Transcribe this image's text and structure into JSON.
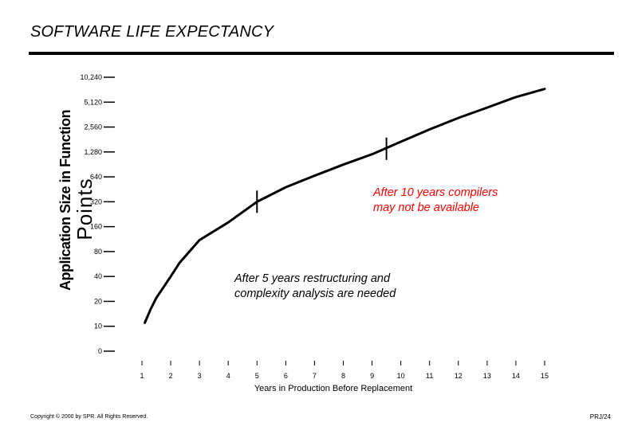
{
  "title": "SOFTWARE LIFE EXPECTANCY",
  "footer": {
    "copyright": "Copyright © 2000 by SPR. All Rights Reserved.",
    "page": "PRJ/24"
  },
  "colors": {
    "note_highlight": "#ff0000",
    "line": "#000000"
  },
  "chart_data": {
    "type": "line",
    "ylabel_lines": [
      "Application Size in Function",
      "Points"
    ],
    "xlabel": "Years in Production Before Replacement",
    "y_scale": "log2",
    "y_ticks": [
      "10,240",
      "5,120",
      "2,560",
      "1,280",
      "640",
      "320",
      "160",
      "80",
      "40",
      "20",
      "10",
      "0"
    ],
    "y_tick_values": [
      10240,
      5120,
      2560,
      1280,
      640,
      320,
      160,
      80,
      40,
      20,
      10,
      0
    ],
    "x_ticks": [
      "1",
      "2",
      "3",
      "4",
      "5",
      "6",
      "7",
      "8",
      "9",
      "10",
      "11",
      "12",
      "13",
      "14",
      "15"
    ],
    "xlim": [
      1,
      15
    ],
    "grid": false,
    "series": [
      {
        "x": [
          1.1,
          1.3,
          1.5,
          2.0,
          2.3,
          3.0,
          4.0,
          5.0,
          6.0,
          7.0,
          8.0,
          9.0,
          10.0,
          11.0,
          12.0,
          13.0,
          14.0,
          15.0
        ],
        "y": [
          11,
          16,
          22,
          40,
          58,
          110,
          180,
          320,
          480,
          660,
          900,
          1200,
          1700,
          2400,
          3300,
          4400,
          5900,
          7400
        ]
      }
    ],
    "markers": [
      {
        "x": 5.0,
        "y": 320
      },
      {
        "x": 9.5,
        "y": 1400
      }
    ],
    "annotations": [
      {
        "lines": [
          "After 10 years compilers",
          "may not be available"
        ],
        "color": "#ff0000"
      },
      {
        "lines": [
          "After 5 years restructuring and",
          "complexity analysis are needed"
        ],
        "color": "#000000"
      }
    ]
  }
}
